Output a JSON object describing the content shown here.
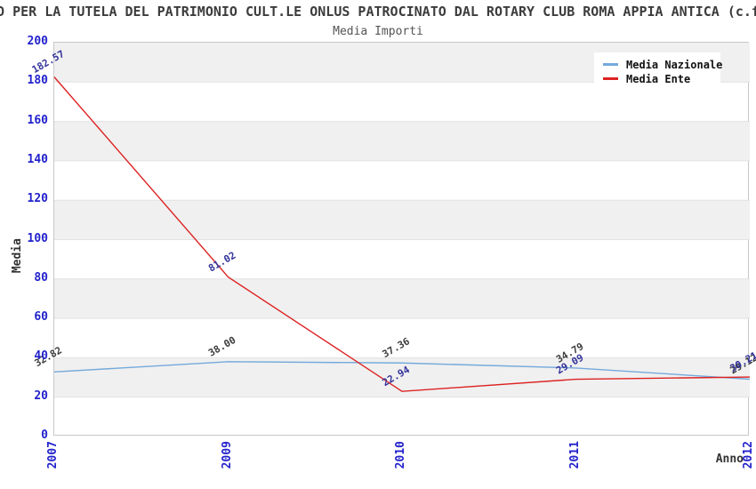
{
  "header": {
    "title_line": "O PER LA TUTELA DEL PATRIMONIO CULT.LE ONLUS PATROCINATO DAL ROTARY CLUB ROMA APPIA ANTICA (c.f",
    "subtitle": "Media Importi"
  },
  "chart_data": {
    "type": "line",
    "title": "Media Importi",
    "xlabel": "Anno",
    "ylabel": "Media",
    "ylim": [
      0,
      200
    ],
    "y_ticks": [
      0,
      20,
      40,
      60,
      80,
      100,
      120,
      140,
      160,
      180,
      200
    ],
    "categories": [
      "2007",
      "2009",
      "2010",
      "2011",
      "2012"
    ],
    "series": [
      {
        "name": "Media Nazionale",
        "color": "#74a9dc",
        "label_color": "#3d3d3d",
        "values": [
          32.82,
          38.0,
          37.36,
          34.79,
          29.12
        ]
      },
      {
        "name": "Media Ente",
        "color": "#dd2222",
        "label_color": "#33339b",
        "values": [
          182.57,
          81.02,
          22.94,
          29.09,
          30.21
        ]
      }
    ],
    "legend_position": "top-right",
    "grid": true,
    "band_color": "#f0f0f0",
    "grid_color": "#e2e2e2",
    "tick_color": "#2222cc"
  }
}
